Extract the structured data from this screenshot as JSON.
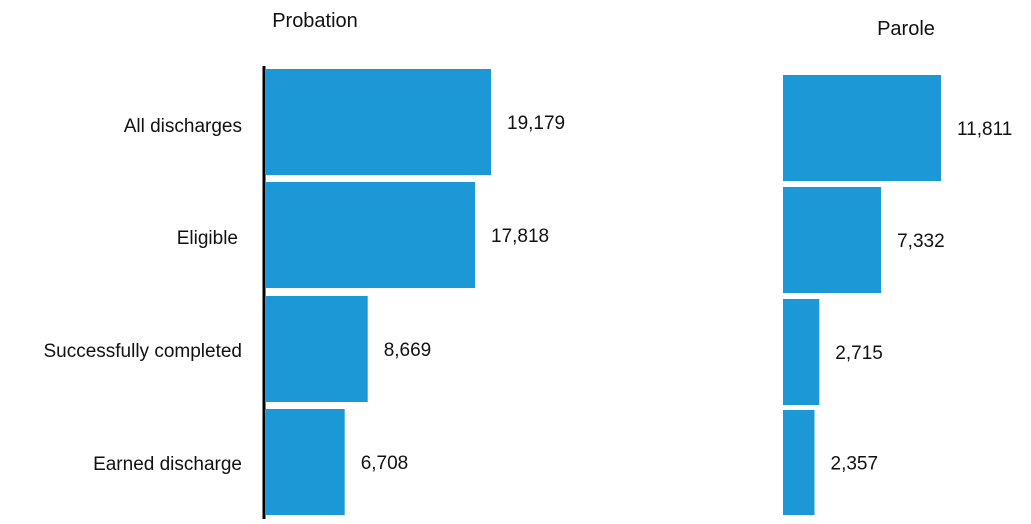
{
  "chart_data": [
    {
      "type": "bar",
      "orientation": "horizontal",
      "title": "Probation",
      "categories": [
        "All discharges",
        "Eligible",
        "Successfully completed",
        "Earned discharge"
      ],
      "values": [
        19179,
        17818,
        8669,
        6708
      ],
      "value_labels": [
        "19,179",
        "17,818",
        "8,669",
        "6,708"
      ],
      "color": "#1b98d5",
      "xlim": [
        0,
        19179
      ],
      "grid": false,
      "legend": "none"
    },
    {
      "type": "bar",
      "orientation": "horizontal",
      "title": "Parole",
      "categories": [
        "All discharges",
        "Eligible",
        "Successfully completed",
        "Earned discharge"
      ],
      "values": [
        11811,
        7332,
        2715,
        2357
      ],
      "value_labels": [
        "11,811",
        "7,332",
        "2,715",
        "2,357"
      ],
      "color": "#1b98d5",
      "xlim": [
        0,
        11811
      ],
      "grid": false,
      "legend": "none"
    }
  ]
}
